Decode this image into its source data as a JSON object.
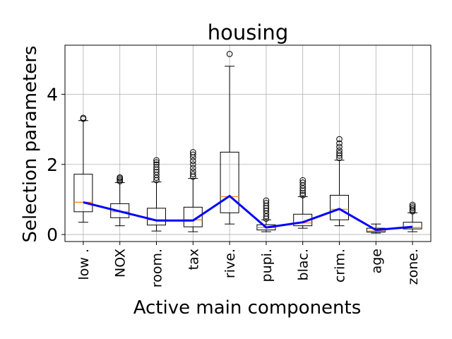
{
  "chart_data": {
    "type": "box",
    "title": "housing",
    "xlabel": "Active main components",
    "ylabel": "Selection parameters",
    "ylim": [
      -0.2,
      5.4
    ],
    "yticks": [
      0,
      2,
      4
    ],
    "grid": true,
    "categories": [
      "low .",
      "NOX",
      "room.",
      "tax",
      "rive.",
      "pupi.",
      "blac.",
      "crim.",
      "age",
      "zone."
    ],
    "boxes": [
      {
        "whisker_low": 0.35,
        "q1": 0.65,
        "median": 0.92,
        "q3": 1.72,
        "whisker_high": 3.25,
        "outliers": [
          3.3,
          3.33
        ]
      },
      {
        "whisker_low": 0.25,
        "q1": 0.48,
        "median": 0.65,
        "q3": 0.88,
        "whisker_high": 1.48,
        "outliers": [
          1.52,
          1.56,
          1.6,
          1.63
        ]
      },
      {
        "whisker_low": 0.1,
        "q1": 0.27,
        "median": 0.42,
        "q3": 0.75,
        "whisker_high": 1.5,
        "outliers": [
          1.55,
          1.62,
          1.7,
          1.78,
          1.85,
          1.92,
          2.0,
          2.06,
          2.12
        ]
      },
      {
        "whisker_low": 0.08,
        "q1": 0.22,
        "median": 0.42,
        "q3": 0.78,
        "whisker_high": 1.6,
        "outliers": [
          1.65,
          1.72,
          1.8,
          1.9,
          2.0,
          2.1,
          2.2,
          2.28,
          2.35
        ]
      },
      {
        "whisker_low": 0.3,
        "q1": 0.62,
        "median": 1.08,
        "q3": 2.35,
        "whisker_high": 4.8,
        "outliers": [
          5.15
        ]
      },
      {
        "whisker_low": 0.08,
        "q1": 0.13,
        "median": 0.2,
        "q3": 0.28,
        "whisker_high": 0.42,
        "outliers": [
          0.45,
          0.52,
          0.6,
          0.68,
          0.75,
          0.82,
          0.9,
          0.97
        ]
      },
      {
        "whisker_low": 0.18,
        "q1": 0.25,
        "median": 0.33,
        "q3": 0.58,
        "whisker_high": 1.08,
        "outliers": [
          1.12,
          1.18,
          1.25,
          1.32,
          1.4,
          1.48,
          1.55
        ]
      },
      {
        "whisker_low": 0.25,
        "q1": 0.42,
        "median": 0.72,
        "q3": 1.12,
        "whisker_high": 2.12,
        "outliers": [
          2.18,
          2.25,
          2.32,
          2.4,
          2.5,
          2.6,
          2.72
        ]
      },
      {
        "whisker_low": 0.04,
        "q1": 0.07,
        "median": 0.1,
        "q3": 0.18,
        "whisker_high": 0.3,
        "outliers": []
      },
      {
        "whisker_low": 0.08,
        "q1": 0.16,
        "median": 0.2,
        "q3": 0.35,
        "whisker_high": 0.62,
        "outliers": [
          0.66,
          0.7,
          0.75,
          0.8,
          0.85
        ]
      }
    ],
    "line": {
      "color": "#0000ff",
      "values": [
        0.92,
        0.66,
        0.4,
        0.4,
        1.1,
        0.2,
        0.35,
        0.73,
        0.13,
        0.22
      ]
    },
    "colors": {
      "box": "#000000",
      "median": "#ff7f0e",
      "grid": "#b0b0b0"
    }
  }
}
